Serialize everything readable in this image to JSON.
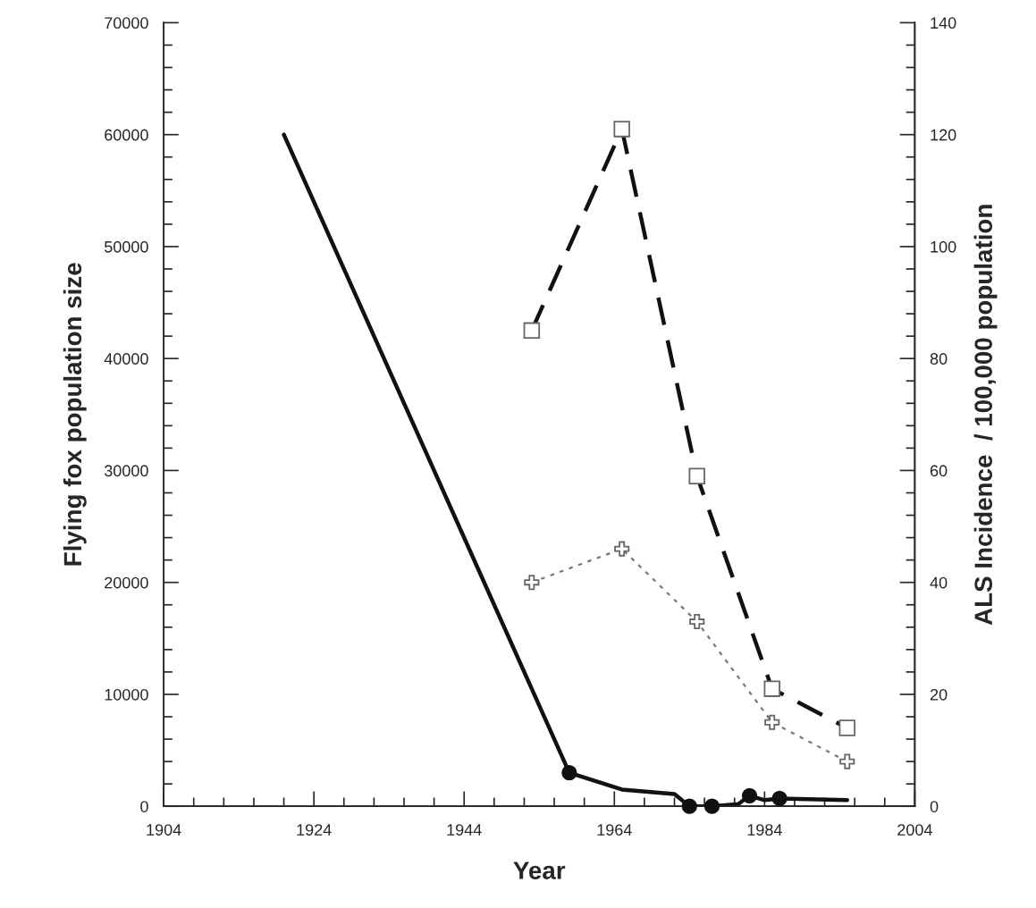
{
  "chart_data": {
    "type": "line",
    "xlabel": "Year",
    "ylabel": "Flying fox population size",
    "y2label": "ALS Incidence  / 100,000 population",
    "xlim": [
      1904,
      2004
    ],
    "xticks": [
      1904,
      {
        "value": 1908,
        "label": null
      },
      {
        "value": 1912,
        "label": null
      },
      {
        "value": 1916,
        "label": null
      },
      {
        "value": 1920,
        "label": null
      },
      1924,
      {
        "value": 1928,
        "label": null
      },
      {
        "value": 1932,
        "label": null
      },
      {
        "value": 1936,
        "label": null
      },
      {
        "value": 1940,
        "label": null
      },
      1944,
      {
        "value": 1948,
        "label": null
      },
      {
        "value": 1952,
        "label": null
      },
      {
        "value": 1956,
        "label": null
      },
      {
        "value": 1960,
        "label": null
      },
      1964,
      {
        "value": 1968,
        "label": null
      },
      {
        "value": 1972,
        "label": null
      },
      {
        "value": 1976,
        "label": null
      },
      {
        "value": 1980,
        "label": null
      },
      1984,
      {
        "value": 1988,
        "label": null
      },
      {
        "value": 1992,
        "label": null
      },
      {
        "value": 1996,
        "label": null
      },
      {
        "value": 2000,
        "label": null
      },
      2004
    ],
    "ylim": [
      0,
      70000
    ],
    "yticks": [
      0,
      {
        "value": 2000,
        "label": null
      },
      {
        "value": 4000,
        "label": null
      },
      {
        "value": 6000,
        "label": null
      },
      {
        "value": 8000,
        "label": null
      },
      10000,
      {
        "value": 12000,
        "label": null
      },
      {
        "value": 14000,
        "label": null
      },
      {
        "value": 16000,
        "label": null
      },
      {
        "value": 18000,
        "label": null
      },
      20000,
      {
        "value": 22000,
        "label": null
      },
      {
        "value": 24000,
        "label": null
      },
      {
        "value": 26000,
        "label": null
      },
      {
        "value": 28000,
        "label": null
      },
      30000,
      {
        "value": 32000,
        "label": null
      },
      {
        "value": 34000,
        "label": null
      },
      {
        "value": 36000,
        "label": null
      },
      {
        "value": 38000,
        "label": null
      },
      40000,
      {
        "value": 42000,
        "label": null
      },
      {
        "value": 44000,
        "label": null
      },
      {
        "value": 46000,
        "label": null
      },
      {
        "value": 48000,
        "label": null
      },
      50000,
      {
        "value": 52000,
        "label": null
      },
      {
        "value": 54000,
        "label": null
      },
      {
        "value": 56000,
        "label": null
      },
      {
        "value": 58000,
        "label": null
      },
      60000,
      {
        "value": 62000,
        "label": null
      },
      {
        "value": 64000,
        "label": null
      },
      {
        "value": 66000,
        "label": null
      },
      {
        "value": 68000,
        "label": null
      },
      70000
    ],
    "y2lim": [
      0,
      140
    ],
    "y2ticks": [
      0,
      {
        "value": 4,
        "label": null
      },
      {
        "value": 8,
        "label": null
      },
      {
        "value": 12,
        "label": null
      },
      {
        "value": 16,
        "label": null
      },
      20,
      {
        "value": 24,
        "label": null
      },
      {
        "value": 28,
        "label": null
      },
      {
        "value": 32,
        "label": null
      },
      {
        "value": 36,
        "label": null
      },
      40,
      {
        "value": 44,
        "label": null
      },
      {
        "value": 48,
        "label": null
      },
      {
        "value": 52,
        "label": null
      },
      {
        "value": 56,
        "label": null
      },
      60,
      {
        "value": 64,
        "label": null
      },
      {
        "value": 68,
        "label": null
      },
      {
        "value": 72,
        "label": null
      },
      {
        "value": 76,
        "label": null
      },
      80,
      {
        "value": 84,
        "label": null
      },
      {
        "value": 88,
        "label": null
      },
      {
        "value": 92,
        "label": null
      },
      {
        "value": 96,
        "label": null
      },
      100,
      {
        "value": 104,
        "label": null
      },
      {
        "value": 108,
        "label": null
      },
      {
        "value": 112,
        "label": null
      },
      {
        "value": 116,
        "label": null
      },
      120,
      {
        "value": 124,
        "label": null
      },
      {
        "value": 128,
        "label": null
      },
      {
        "value": 132,
        "label": null
      },
      {
        "value": 136,
        "label": null
      },
      140
    ],
    "grid": false,
    "legend": false,
    "series": [
      {
        "color": "#111111",
        "marker": "none",
        "line_style": "solid",
        "x": [
          1920,
          1958,
          1965,
          1972,
          1974,
          1977,
          1980.5,
          1982,
          1984,
          1986,
          1995
        ],
        "values": [
          60000,
          3000,
          1500,
          1100,
          0,
          0,
          200,
          950,
          550,
          700,
          550
        ]
      },
      {
        "type": "scatter",
        "color": "#111111",
        "marker": "circle",
        "x": [
          1958,
          1974,
          1977,
          1982,
          1986
        ],
        "values": [
          3000,
          0,
          0,
          950,
          700
        ]
      },
      {
        "axis": "y2",
        "color": "#111111",
        "marker": "square",
        "line_style": "dashed",
        "x": [
          1953,
          1965,
          1975,
          1985,
          1995
        ],
        "values": [
          85,
          121,
          59,
          21,
          14
        ]
      },
      {
        "axis": "y2",
        "color": "#777777",
        "marker": "cross",
        "line_style": "dotted",
        "x": [
          1953,
          1965,
          1975,
          1985,
          1995
        ],
        "values": [
          40,
          46,
          33,
          15,
          8
        ]
      }
    ]
  }
}
